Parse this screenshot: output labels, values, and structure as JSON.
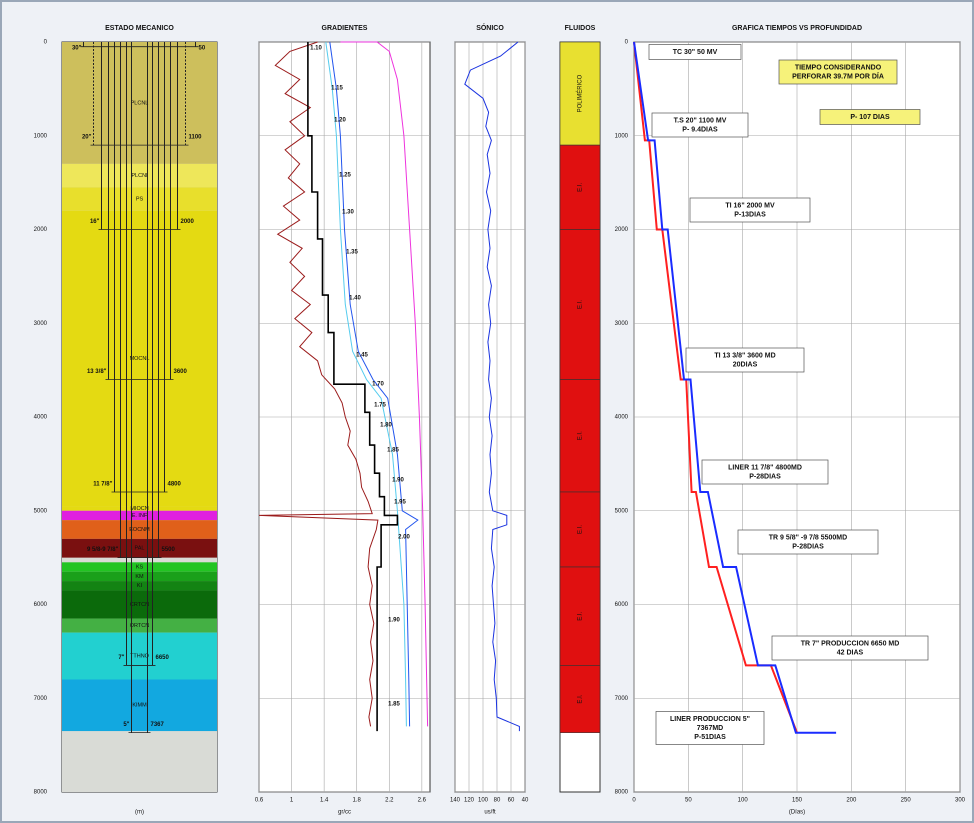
{
  "chart_data": [
    {
      "type": "schematic",
      "title": "ESTADO MECANICO",
      "y_label": "(m)",
      "ylim": [
        0,
        8000
      ],
      "yticks": [
        0,
        1000,
        2000,
        3000,
        4000,
        5000,
        6000,
        7000,
        8000
      ],
      "formations": [
        {
          "name": "PLCNL",
          "top": 0,
          "bottom": 1300,
          "color": "#cdbf5c"
        },
        {
          "name": "PLCNI",
          "top": 1300,
          "bottom": 1550,
          "color": "#eee75a"
        },
        {
          "name": "PS",
          "top": 1550,
          "bottom": 1800,
          "color": "#e8df2c"
        },
        {
          "name": "MOCNL",
          "top": 1800,
          "bottom": 4950,
          "color": "#e4da12"
        },
        {
          "name": "MIOCN",
          "top": 4950,
          "bottom": 5000,
          "color": "#e4da12"
        },
        {
          "name": "E. INF",
          "top": 5000,
          "bottom": 5100,
          "color": "#e020e0"
        },
        {
          "name": "EOCNM",
          "top": 5100,
          "bottom": 5300,
          "color": "#e0601a"
        },
        {
          "name": "PAL",
          "top": 5300,
          "bottom": 5500,
          "color": "#7a1010"
        },
        {
          "name": "KS",
          "top": 5550,
          "bottom": 5650,
          "color": "#22c422"
        },
        {
          "name": "KM",
          "top": 5650,
          "bottom": 5750,
          "color": "#1aa01a"
        },
        {
          "name": "KI",
          "top": 5750,
          "bottom": 5850,
          "color": "#138313"
        },
        {
          "name": "CRTCN",
          "top": 5850,
          "bottom": 6150,
          "color": "#0b6a0b"
        },
        {
          "name": "ORTCN",
          "top": 6150,
          "bottom": 6300,
          "color": "#44b044"
        },
        {
          "name": "TTHNO",
          "top": 6300,
          "bottom": 6800,
          "color": "#22d0d0"
        },
        {
          "name": "KIMM",
          "top": 6800,
          "bottom": 7350,
          "color": "#12a8e0"
        }
      ],
      "casings": [
        {
          "size": "30\"",
          "depth": 50
        },
        {
          "size": "20\"",
          "depth": 1100
        },
        {
          "size": "16\"",
          "depth": 2000
        },
        {
          "size": "13 3/8\"",
          "depth": 3600
        },
        {
          "size": "11 7/8\"",
          "depth": 4800
        },
        {
          "size": "9 5/8-9 7/8\"",
          "depth": 5500
        },
        {
          "size": "7\"",
          "depth": 6650
        },
        {
          "size": "5\"",
          "depth": 7367
        }
      ]
    },
    {
      "type": "log",
      "title": "GRADIENTES",
      "x_label": "gr/cc",
      "xlim": [
        0.6,
        2.7
      ],
      "xticks": [
        0.6,
        1,
        1.4,
        1.8,
        2.2,
        2.6
      ],
      "ylim": [
        0,
        8000
      ],
      "yticks": [
        0,
        1000,
        2000,
        3000,
        4000,
        5000,
        6000,
        7000,
        8000
      ],
      "grid": true,
      "series": [
        {
          "color": "#ee33dd",
          "values": [
            1.6,
            2.05,
            2.2,
            2.3,
            2.38,
            2.45,
            2.52,
            2.57,
            2.61,
            2.64,
            2.67
          ],
          "depth": [
            0,
            0,
            100,
            400,
            1000,
            2000,
            3000,
            4000,
            5000,
            6000,
            7300
          ]
        },
        {
          "color": "#55ccee",
          "values": [
            1.42,
            1.5,
            1.55,
            1.6,
            1.66,
            1.75,
            1.92,
            2.1,
            2.24,
            2.3,
            2.38,
            2.4,
            2.41
          ],
          "depth": [
            0,
            500,
            1000,
            2000,
            2800,
            3300,
            3600,
            3800,
            4400,
            5000,
            6000,
            6800,
            7300
          ]
        },
        {
          "color": "#2255ee",
          "values": [
            1.47,
            1.55,
            1.6,
            1.65,
            1.72,
            1.82,
            2,
            2.18,
            2.3,
            2.36,
            2.55,
            2.4,
            2.42,
            2.44,
            2.45
          ],
          "depth": [
            0,
            500,
            1000,
            2000,
            2800,
            3300,
            3600,
            3800,
            4400,
            5000,
            5100,
            5200,
            6000,
            6800,
            7300
          ]
        },
        {
          "color": "#9b1b1b",
          "values": [
            1.32,
            0.98,
            0.8,
            1.1,
            0.92,
            1.23,
            0.98,
            1.16,
            0.92,
            1.1,
            0.96,
            1.16,
            0.9,
            1.1,
            0.83,
            1.13,
            0.98,
            1.16,
            1,
            1.23,
            1.04,
            1.25,
            1.1,
            1.32,
            1.37,
            1.53,
            1.62,
            1.66,
            1.72,
            1.69,
            1.79,
            1.84,
            1.86,
            1.94,
            1.99,
            0.6,
            2.06,
            2.04,
            1.96,
            1.94,
            1.99,
            1.96,
            2.01,
            1.97,
            2,
            1.96,
            1.99,
            1.95,
            1.97
          ],
          "depth": [
            0,
            100,
            250,
            400,
            550,
            700,
            850,
            1000,
            1150,
            1300,
            1450,
            1600,
            1750,
            1900,
            2050,
            2200,
            2350,
            2500,
            2650,
            2800,
            2950,
            3100,
            3250,
            3400,
            3550,
            3700,
            3850,
            4000,
            4150,
            4300,
            4450,
            4600,
            4750,
            4900,
            5030,
            5050,
            5100,
            5200,
            5400,
            5600,
            5800,
            6000,
            6200,
            6400,
            6600,
            6800,
            7000,
            7200,
            7300
          ]
        },
        {
          "color": "#000000",
          "values": [
            1.2,
            1.2,
            1.25,
            1.25,
            1.32,
            1.32,
            1.38,
            1.38,
            1.45,
            1.45,
            1.52,
            1.52,
            1.9,
            1.9,
            1.96,
            1.96,
            2.02,
            2.02,
            2.08,
            2.08,
            2.14,
            2.14,
            2.3,
            2.3,
            2.1,
            2.1,
            2.05,
            2.05
          ],
          "depth": [
            0,
            1000,
            1000,
            1600,
            1600,
            2100,
            2100,
            2700,
            2700,
            3100,
            3100,
            3650,
            3650,
            3950,
            3950,
            4300,
            4300,
            4600,
            4600,
            4850,
            4850,
            5050,
            5050,
            5150,
            5150,
            5600,
            5600,
            7350
          ]
        }
      ],
      "annotations": [
        "1.10",
        "1.15",
        "1.20",
        "1.25",
        "1.30",
        "1.35",
        "1.40",
        "1.45",
        "1.70",
        "1.75",
        "1.80",
        "1.85",
        "1.90",
        "1.95",
        "2.00",
        "1.90",
        "1.85"
      ]
    },
    {
      "type": "log",
      "title": "SÓNICO",
      "x_label": "us/ft",
      "xlim": [
        140,
        40
      ],
      "xticks": [
        140,
        120,
        100,
        80,
        60,
        40
      ],
      "ylim": [
        0,
        8000
      ],
      "yticks": [
        0,
        1000,
        2000,
        3000,
        4000,
        5000,
        6000,
        7000,
        8000
      ],
      "grid": true,
      "series": [
        {
          "color": "#1a33e0",
          "values": [
            50,
            75,
            118,
            126,
            100,
            92,
            96,
            88,
            94,
            90,
            95,
            89,
            93,
            90,
            94,
            88,
            92,
            89,
            93,
            90,
            92,
            88,
            91,
            87,
            90,
            88,
            91,
            86,
            66,
            66,
            86,
            88,
            84,
            87,
            85,
            83,
            86,
            82,
            84,
            81,
            80,
            48,
            48
          ],
          "depth": [
            0,
            150,
            300,
            450,
            600,
            750,
            900,
            1050,
            1200,
            1400,
            1600,
            1800,
            2000,
            2200,
            2400,
            2600,
            2800,
            3000,
            3200,
            3400,
            3600,
            3800,
            4000,
            4200,
            4400,
            4600,
            4800,
            5000,
            5050,
            5150,
            5200,
            5400,
            5600,
            5800,
            6000,
            6200,
            6400,
            6600,
            6800,
            7000,
            7200,
            7300,
            7350
          ]
        }
      ]
    },
    {
      "type": "intervals",
      "title": "FLUIDOS",
      "ylim": [
        0,
        8000
      ],
      "intervals": [
        {
          "label": "POLIMÉRICO",
          "top": 0,
          "bottom": 1100,
          "color": "#e8e030"
        },
        {
          "label": "E.I.",
          "top": 1100,
          "bottom": 2000,
          "color": "#e01010"
        },
        {
          "label": "E.I.",
          "top": 2000,
          "bottom": 3600,
          "color": "#e01010"
        },
        {
          "label": "E.I.",
          "top": 3600,
          "bottom": 4800,
          "color": "#e01010"
        },
        {
          "label": "E.I.",
          "top": 4800,
          "bottom": 5600,
          "color": "#e01010"
        },
        {
          "label": "E.I.",
          "top": 5600,
          "bottom": 6650,
          "color": "#e01010"
        },
        {
          "label": "E.I.",
          "top": 6650,
          "bottom": 7367,
          "color": "#e01010"
        }
      ]
    },
    {
      "type": "line",
      "title": "GRAFICA TIEMPOS VS PROFUNDIDAD",
      "x_label": "(Días)",
      "xlim": [
        0,
        300
      ],
      "xticks": [
        0,
        50,
        100,
        150,
        200,
        250,
        300
      ],
      "ylim": [
        0,
        8000
      ],
      "yticks": [
        0,
        1000,
        2000,
        3000,
        4000,
        5000,
        6000,
        7000,
        8000
      ],
      "grid": true,
      "series": [
        {
          "color": "#ff2020",
          "x": [
            0,
            10,
            14,
            21,
            26,
            43,
            48,
            53,
            57,
            69,
            76,
            103,
            126,
            150
          ],
          "values": [
            0,
            1050,
            1050,
            2000,
            2000,
            3600,
            3600,
            4800,
            4800,
            5600,
            5600,
            6650,
            6650,
            7367
          ]
        },
        {
          "color": "#1a2cff",
          "x": [
            0,
            13,
            19,
            26,
            31,
            46,
            52,
            61,
            68,
            82,
            94,
            114,
            130,
            149,
            186
          ],
          "values": [
            0,
            1050,
            1050,
            2000,
            2000,
            3600,
            3600,
            4800,
            4800,
            5600,
            5600,
            6650,
            6650,
            7367,
            7367
          ]
        }
      ],
      "annotations": [
        {
          "lines": [
            "TC 30\" 50 MV"
          ]
        },
        {
          "lines": [
            "T.S 20\" 1100 MV",
            "P- 9.4DIAS"
          ]
        },
        {
          "lines": [
            "TI 16\" 2000 MV",
            "P-13DIAS"
          ]
        },
        {
          "lines": [
            "TI 13 3/8\" 3600 MD",
            "20DIAS"
          ]
        },
        {
          "lines": [
            "LINER 11 7/8\" 4800MD",
            "P-28DIAS"
          ]
        },
        {
          "lines": [
            "TR 9 5/8\" -9 7/8 5500MD",
            "P-28DIAS"
          ]
        },
        {
          "lines": [
            "TR 7\" PRODUCCION 6650 MD",
            "42 DIAS"
          ]
        },
        {
          "lines": [
            "LINER PRODUCCION 5\"",
            "7367MD",
            "P-51DIAS"
          ]
        }
      ],
      "highlights": [
        {
          "lines": [
            "TIEMPO CONSIDERANDO",
            "PERFORAR 39.7M POR DÍA"
          ]
        },
        {
          "lines": [
            "P- 107 DIAS"
          ]
        }
      ]
    }
  ]
}
